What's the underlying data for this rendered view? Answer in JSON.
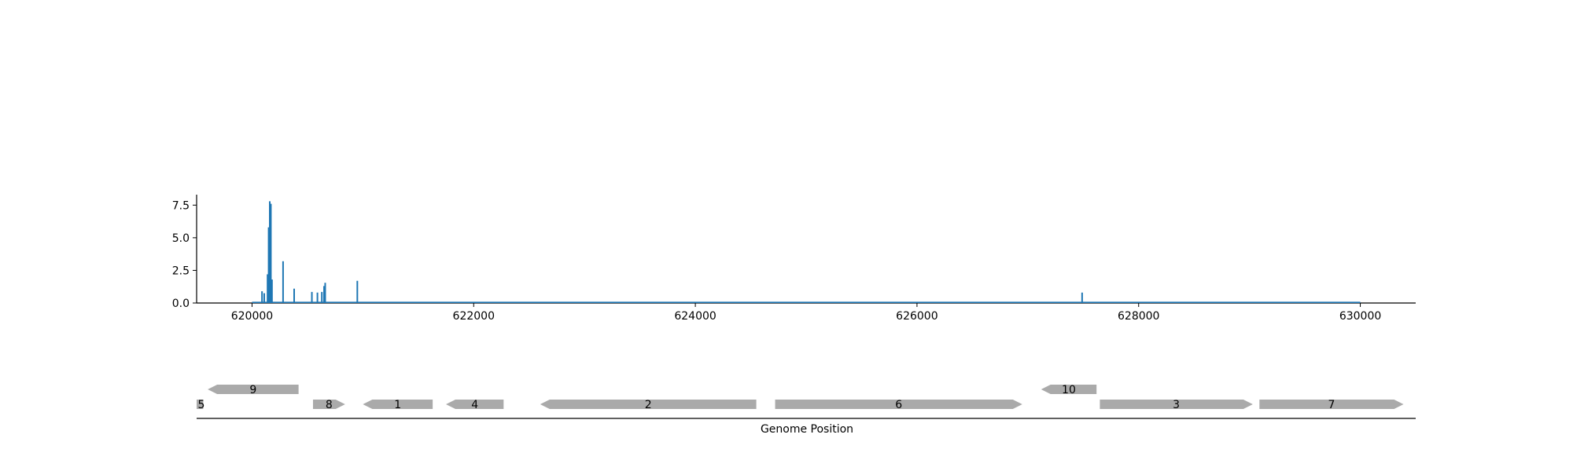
{
  "chart_data": [
    {
      "type": "bar",
      "title": "",
      "xlabel": "",
      "ylabel": "",
      "xlim": [
        619500,
        630500
      ],
      "ylim": [
        0,
        8.3
      ],
      "x_ticks": [
        620000,
        622000,
        624000,
        626000,
        628000,
        630000
      ],
      "y_ticks": [
        0.0,
        2.5,
        5.0,
        7.5
      ],
      "y_tick_labels": [
        "0.0",
        "2.5",
        "5.0",
        "7.5"
      ],
      "grid": false,
      "color": "#1f77b4",
      "baseline": {
        "x_start": 620000,
        "x_end": 630000
      },
      "points": [
        {
          "x": 620090,
          "y": 0.9
        },
        {
          "x": 620110,
          "y": 0.75
        },
        {
          "x": 620140,
          "y": 2.2
        },
        {
          "x": 620150,
          "y": 5.8
        },
        {
          "x": 620160,
          "y": 7.8
        },
        {
          "x": 620170,
          "y": 7.6
        },
        {
          "x": 620180,
          "y": 1.8
        },
        {
          "x": 620280,
          "y": 3.2
        },
        {
          "x": 620380,
          "y": 1.1
        },
        {
          "x": 620540,
          "y": 0.85
        },
        {
          "x": 620590,
          "y": 0.8
        },
        {
          "x": 620630,
          "y": 0.85
        },
        {
          "x": 620650,
          "y": 1.3
        },
        {
          "x": 620660,
          "y": 1.55
        },
        {
          "x": 620950,
          "y": 1.7
        },
        {
          "x": 627490,
          "y": 0.8
        }
      ]
    },
    {
      "type": "gene-track",
      "xlabel": "Genome Position",
      "xlim": [
        619500,
        630500
      ],
      "color": "#aaaaaa",
      "genes": [
        {
          "label": "5",
          "start": 619500,
          "end": 619560,
          "strand": "+",
          "row": 0
        },
        {
          "label": "9",
          "start": 619600,
          "end": 620420,
          "strand": "-",
          "row": 1
        },
        {
          "label": "8",
          "start": 620550,
          "end": 620840,
          "strand": "+",
          "row": 0
        },
        {
          "label": "1",
          "start": 621000,
          "end": 621630,
          "strand": "-",
          "row": 0
        },
        {
          "label": "4",
          "start": 621750,
          "end": 622270,
          "strand": "-",
          "row": 0
        },
        {
          "label": "2",
          "start": 622600,
          "end": 624550,
          "strand": "-",
          "row": 0
        },
        {
          "label": "6",
          "start": 624720,
          "end": 626950,
          "strand": "+",
          "row": 0
        },
        {
          "label": "10",
          "start": 627120,
          "end": 627620,
          "strand": "-",
          "row": 1
        },
        {
          "label": "3",
          "start": 627650,
          "end": 629030,
          "strand": "+",
          "row": 0
        },
        {
          "label": "7",
          "start": 629090,
          "end": 630390,
          "strand": "+",
          "row": 0
        }
      ]
    }
  ]
}
